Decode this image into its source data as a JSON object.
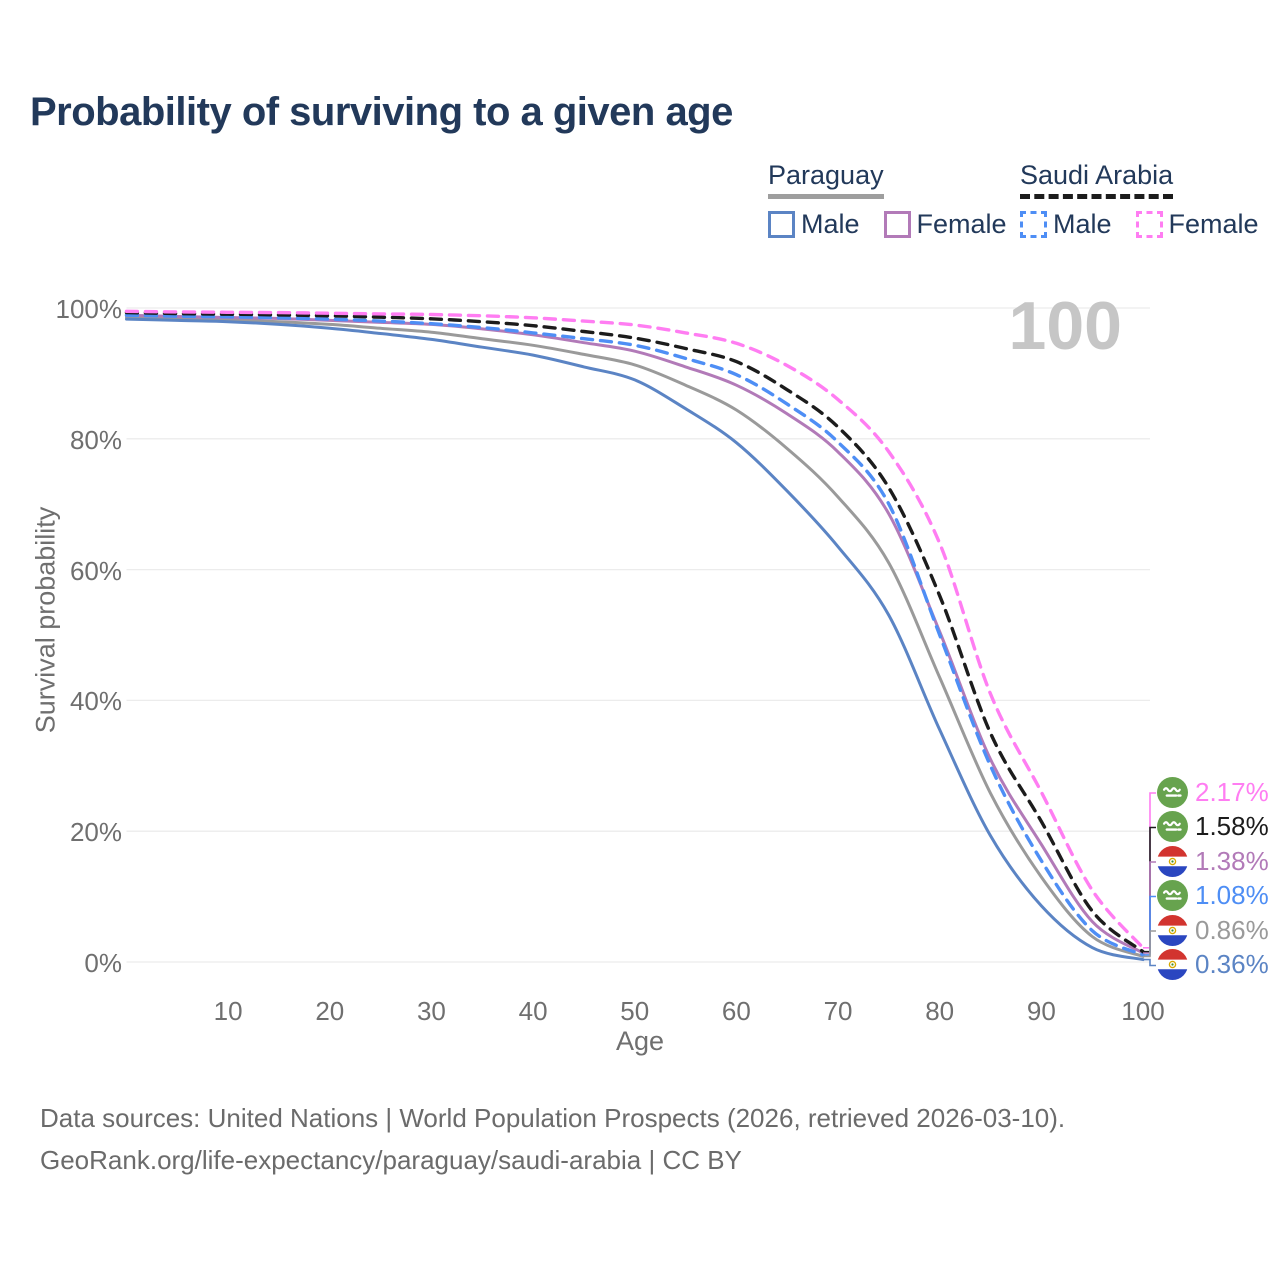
{
  "title": "Probability of surviving to a given age",
  "watermark": "100",
  "legend": {
    "groups": [
      {
        "country": "Paraguay",
        "line_style": "solid",
        "underline_color": "#9e9e9e",
        "items": [
          {
            "label": "Male",
            "color": "#5b84c4",
            "style": "solid"
          },
          {
            "label": "Female",
            "color": "#b27ab8",
            "style": "solid"
          }
        ]
      },
      {
        "country": "Saudi Arabia",
        "line_style": "dashed",
        "underline_color": "#1c1c1c",
        "items": [
          {
            "label": "Male",
            "color": "#4e8ef5",
            "style": "dashed"
          },
          {
            "label": "Female",
            "color": "#ff7df2",
            "style": "dashed"
          }
        ]
      }
    ]
  },
  "chart_data": {
    "type": "line",
    "title": "Probability of surviving to a given age",
    "xlabel": "Age",
    "ylabel": "Survival probability",
    "xlim": [
      0,
      100
    ],
    "ylim": [
      0,
      100
    ],
    "grid": "horizontal",
    "legend_position": "top-right",
    "x_ticks": [
      10,
      20,
      30,
      40,
      50,
      60,
      70,
      80,
      90,
      100
    ],
    "y_ticks": [
      {
        "value": 0,
        "label": "0%"
      },
      {
        "value": 20,
        "label": "20%"
      },
      {
        "value": 40,
        "label": "40%"
      },
      {
        "value": 60,
        "label": "60%"
      },
      {
        "value": 80,
        "label": "80%"
      },
      {
        "value": 100,
        "label": "100%"
      }
    ],
    "x": [
      0,
      5,
      10,
      15,
      20,
      25,
      30,
      35,
      40,
      45,
      50,
      55,
      60,
      65,
      70,
      75,
      80,
      85,
      90,
      95,
      100
    ],
    "series": [
      {
        "name": "Paraguay Both sexes",
        "country": "Paraguay",
        "sex": "Both",
        "style": "solid",
        "color": "#9a9a9a",
        "values": [
          98.6,
          98.4,
          98.2,
          97.9,
          97.5,
          96.9,
          96.3,
          95.3,
          94.3,
          92.9,
          91.3,
          88.2,
          84.4,
          78.5,
          71.1,
          61.0,
          43.5,
          25.8,
          13.0,
          3.9,
          0.86
        ]
      },
      {
        "name": "Paraguay Male",
        "country": "Paraguay",
        "sex": "Male",
        "style": "solid",
        "color": "#5b84c4",
        "values": [
          98.3,
          98.1,
          97.9,
          97.5,
          96.9,
          96.1,
          95.2,
          94.0,
          92.8,
          91.0,
          89.0,
          84.6,
          79.4,
          72.0,
          63.5,
          53.0,
          35.5,
          19.3,
          8.6,
          2.2,
          0.36
        ]
      },
      {
        "name": "Paraguay Female",
        "country": "Paraguay",
        "sex": "Female",
        "style": "solid",
        "color": "#b27ab8",
        "values": [
          98.9,
          98.7,
          98.55,
          98.4,
          98.1,
          97.8,
          97.5,
          96.8,
          95.9,
          94.7,
          93.4,
          91.0,
          88.2,
          83.8,
          78.0,
          68.5,
          50.5,
          31.0,
          18.0,
          6.2,
          1.38
        ]
      },
      {
        "name": "Saudi Arabia Male",
        "country": "Saudi Arabia",
        "sex": "Male",
        "style": "dashed",
        "color": "#4e8ef5",
        "values": [
          98.9,
          98.75,
          98.65,
          98.5,
          98.3,
          98.0,
          97.6,
          97.0,
          96.2,
          95.3,
          94.3,
          92.3,
          89.8,
          85.3,
          79.5,
          70.0,
          50.0,
          30.0,
          15.5,
          4.8,
          1.08
        ]
      },
      {
        "name": "Saudi Arabia Both sexes",
        "country": "Saudi Arabia",
        "sex": "Both",
        "style": "dashed",
        "color": "#1c1c1c",
        "values": [
          99.3,
          99.15,
          99.05,
          98.95,
          98.8,
          98.6,
          98.35,
          97.9,
          97.3,
          96.4,
          95.4,
          93.8,
          91.8,
          87.5,
          81.8,
          72.5,
          56.0,
          35.0,
          21.5,
          7.8,
          1.58
        ]
      },
      {
        "name": "Saudi Arabia Female",
        "country": "Saudi Arabia",
        "sex": "Female",
        "style": "dashed",
        "color": "#ff7df2",
        "values": [
          99.5,
          99.4,
          99.35,
          99.3,
          99.2,
          99.1,
          99.0,
          98.8,
          98.5,
          98.0,
          97.4,
          96.2,
          94.6,
          91.2,
          86.0,
          78.0,
          64.0,
          41.0,
          26.0,
          11.0,
          2.17
        ]
      }
    ],
    "end_labels": [
      {
        "text": "2.17%",
        "series": "Saudi Arabia Female",
        "flag": "saudi-arabia",
        "color": "#ff7df2"
      },
      {
        "text": "1.58%",
        "series": "Saudi Arabia Both sexes",
        "flag": "saudi-arabia",
        "color": "#1c1c1c"
      },
      {
        "text": "1.38%",
        "series": "Paraguay Female",
        "flag": "paraguay",
        "color": "#b27ab8"
      },
      {
        "text": "1.08%",
        "series": "Saudi Arabia Male",
        "flag": "saudi-arabia",
        "color": "#4e8ef5"
      },
      {
        "text": "0.86%",
        "series": "Paraguay Both sexes",
        "flag": "paraguay",
        "color": "#9a9a9a"
      },
      {
        "text": "0.36%",
        "series": "Paraguay Male",
        "flag": "paraguay",
        "color": "#5b84c4"
      }
    ]
  },
  "footer": {
    "line1": "Data sources: United Nations | World Population Prospects (2026, retrieved 2026-03-10).",
    "line2": "GeoRank.org/life-expectancy/paraguay/saudi-arabia | CC BY"
  }
}
